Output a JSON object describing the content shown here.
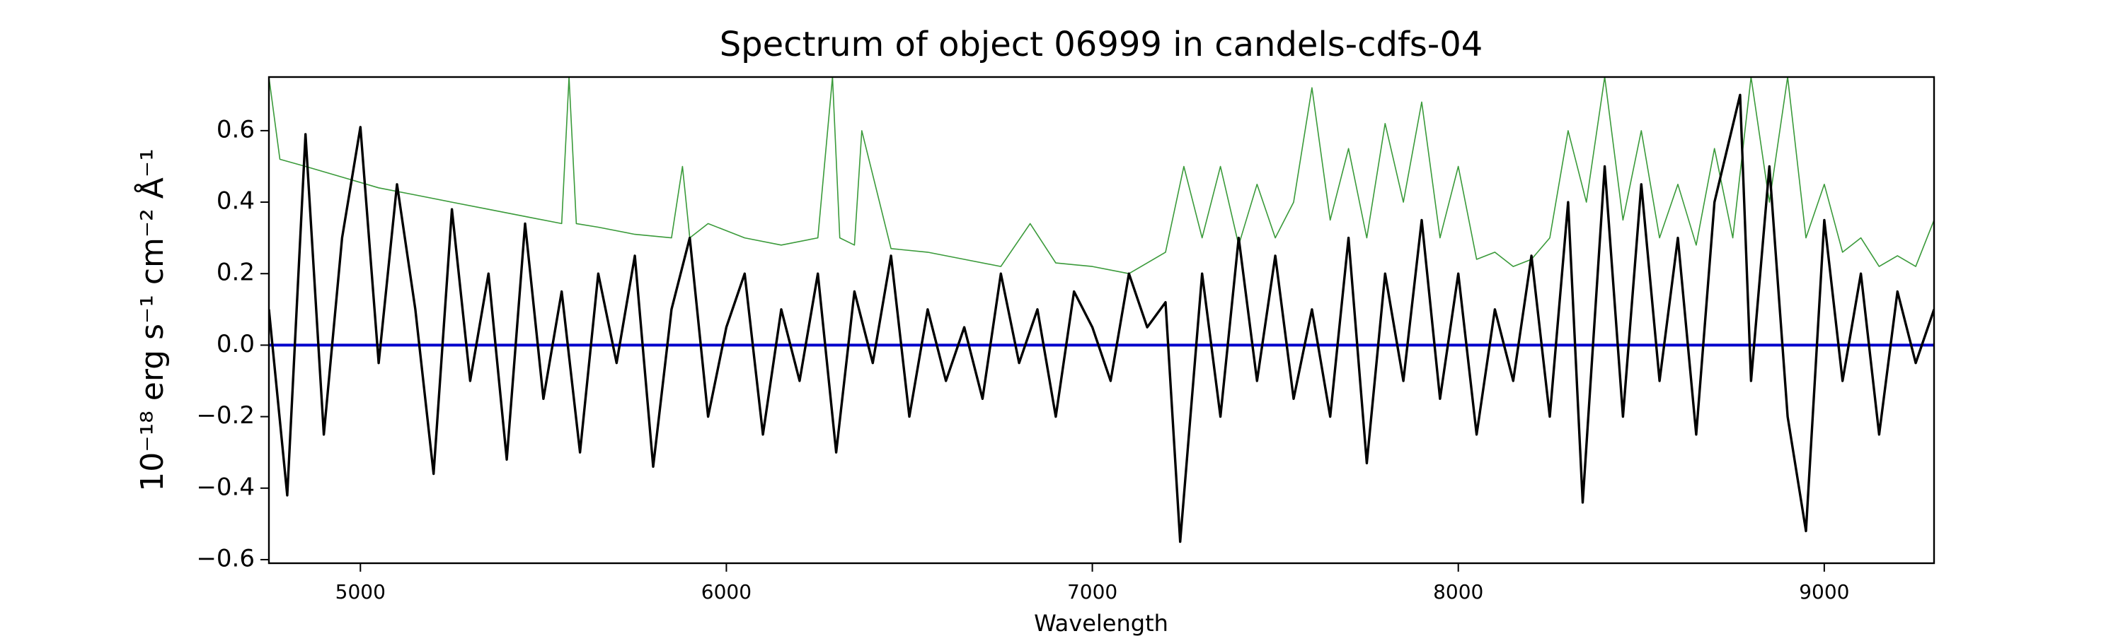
{
  "chart_data": {
    "type": "line",
    "title": "Spectrum of object 06999 in candels-cdfs-04",
    "xlabel": "Wavelength",
    "ylabel": "10⁻¹⁸ erg s⁻¹ cm⁻² Å⁻¹",
    "xlim": [
      4750,
      9300
    ],
    "ylim": [
      -0.61,
      0.75
    ],
    "xticks": [
      5000,
      6000,
      7000,
      8000,
      9000
    ],
    "yticks": [
      {
        "value": -0.6,
        "label": "−0.6"
      },
      {
        "value": -0.4,
        "label": "−0.4"
      },
      {
        "value": -0.2,
        "label": "−0.2"
      },
      {
        "value": 0,
        "label": "0.0"
      },
      0.2,
      0.4,
      0.6
    ],
    "grid": false,
    "series": [
      {
        "color": "#3a9a3a",
        "width": 1.6,
        "x": [
          4750,
          4780,
          4850,
          4950,
          5050,
          5150,
          5250,
          5350,
          5450,
          5550,
          5570,
          5590,
          5650,
          5750,
          5850,
          5880,
          5900,
          5950,
          6050,
          6150,
          6250,
          6290,
          6310,
          6350,
          6370,
          6450,
          6550,
          6650,
          6750,
          6830,
          6900,
          7000,
          7100,
          7200,
          7250,
          7300,
          7350,
          7400,
          7450,
          7500,
          7550,
          7600,
          7650,
          7700,
          7750,
          7800,
          7850,
          7900,
          7950,
          8000,
          8050,
          8100,
          8150,
          8200,
          8250,
          8300,
          8350,
          8400,
          8450,
          8500,
          8550,
          8600,
          8650,
          8700,
          8750,
          8800,
          8850,
          8900,
          8950,
          9000,
          9050,
          9100,
          9150,
          9200,
          9250,
          9300
        ],
        "values": [
          0.75,
          0.52,
          0.5,
          0.47,
          0.44,
          0.42,
          0.4,
          0.38,
          0.36,
          0.34,
          0.75,
          0.34,
          0.33,
          0.31,
          0.3,
          0.5,
          0.3,
          0.34,
          0.3,
          0.28,
          0.3,
          0.75,
          0.3,
          0.28,
          0.6,
          0.27,
          0.26,
          0.24,
          0.22,
          0.34,
          0.23,
          0.22,
          0.2,
          0.26,
          0.5,
          0.3,
          0.5,
          0.28,
          0.45,
          0.3,
          0.4,
          0.72,
          0.35,
          0.55,
          0.3,
          0.62,
          0.4,
          0.68,
          0.3,
          0.5,
          0.24,
          0.26,
          0.22,
          0.24,
          0.3,
          0.6,
          0.4,
          0.75,
          0.35,
          0.6,
          0.3,
          0.45,
          0.28,
          0.55,
          0.3,
          0.75,
          0.4,
          0.75,
          0.3,
          0.45,
          0.26,
          0.3,
          0.22,
          0.25,
          0.22,
          0.35
        ]
      },
      {
        "color": "#0000cc",
        "width": 4,
        "x": [
          4750,
          9300
        ],
        "values": [
          0,
          0
        ]
      },
      {
        "color": "#000000",
        "width": 3.4,
        "x": [
          4750,
          4800,
          4850,
          4900,
          4950,
          5000,
          5050,
          5100,
          5150,
          5200,
          5250,
          5300,
          5350,
          5400,
          5450,
          5500,
          5550,
          5600,
          5650,
          5700,
          5750,
          5800,
          5850,
          5900,
          5950,
          6000,
          6050,
          6100,
          6150,
          6200,
          6250,
          6300,
          6350,
          6400,
          6450,
          6500,
          6550,
          6600,
          6650,
          6700,
          6750,
          6800,
          6850,
          6900,
          6950,
          7000,
          7050,
          7100,
          7150,
          7200,
          7240,
          7300,
          7350,
          7400,
          7450,
          7500,
          7550,
          7600,
          7650,
          7700,
          7750,
          7800,
          7850,
          7900,
          7950,
          8000,
          8050,
          8100,
          8150,
          8200,
          8250,
          8300,
          8340,
          8400,
          8450,
          8500,
          8550,
          8600,
          8650,
          8700,
          8770,
          8800,
          8850,
          8900,
          8950,
          9000,
          9050,
          9100,
          9150,
          9200,
          9250,
          9300
        ],
        "values": [
          0.1,
          -0.42,
          0.59,
          -0.25,
          0.3,
          0.61,
          -0.05,
          0.45,
          0.1,
          -0.36,
          0.38,
          -0.1,
          0.2,
          -0.32,
          0.34,
          -0.15,
          0.15,
          -0.3,
          0.2,
          -0.05,
          0.25,
          -0.34,
          0.1,
          0.3,
          -0.2,
          0.05,
          0.2,
          -0.25,
          0.1,
          -0.1,
          0.2,
          -0.3,
          0.15,
          -0.05,
          0.25,
          -0.2,
          0.1,
          -0.1,
          0.05,
          -0.15,
          0.2,
          -0.05,
          0.1,
          -0.2,
          0.15,
          0.05,
          -0.1,
          0.2,
          0.05,
          0.12,
          -0.55,
          0.2,
          -0.2,
          0.3,
          -0.1,
          0.25,
          -0.15,
          0.1,
          -0.2,
          0.3,
          -0.33,
          0.2,
          -0.1,
          0.35,
          -0.15,
          0.2,
          -0.25,
          0.1,
          -0.1,
          0.25,
          -0.2,
          0.4,
          -0.44,
          0.5,
          -0.2,
          0.45,
          -0.1,
          0.3,
          -0.25,
          0.4,
          0.7,
          -0.1,
          0.5,
          -0.2,
          -0.52,
          0.35,
          -0.1,
          0.2,
          -0.25,
          0.15,
          -0.05,
          0.1
        ]
      }
    ]
  }
}
